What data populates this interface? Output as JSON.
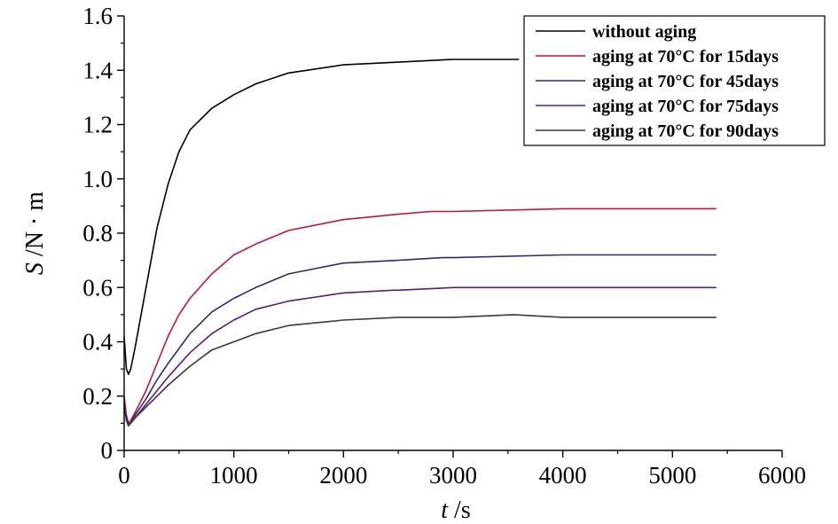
{
  "chart_data": {
    "type": "line",
    "xlabel": {
      "italic": "t",
      "rest": " /s"
    },
    "ylabel": {
      "italic": "S",
      "rest": " /N · m"
    },
    "xlim": [
      0,
      6000
    ],
    "ylim": [
      0,
      1.6
    ],
    "x_ticks": [
      0,
      1000,
      2000,
      3000,
      4000,
      5000,
      6000
    ],
    "y_ticks": [
      0,
      0.2,
      0.4,
      0.6,
      0.8,
      1.0,
      1.2,
      1.4,
      1.6
    ],
    "x_tick_labels": [
      "0",
      "1000",
      "2000",
      "3000",
      "4000",
      "5000",
      "6000"
    ],
    "y_tick_labels": [
      "0",
      "0.2",
      "0.4",
      "0.6",
      "0.8",
      "1.0",
      "1.2",
      "1.4",
      "1.6"
    ],
    "grid": false,
    "legend_position": "top-right",
    "series": [
      {
        "name": "without aging",
        "color": "#000000",
        "points": [
          [
            0,
            0.42
          ],
          [
            20,
            0.3
          ],
          [
            40,
            0.28
          ],
          [
            60,
            0.3
          ],
          [
            100,
            0.38
          ],
          [
            200,
            0.6
          ],
          [
            300,
            0.82
          ],
          [
            400,
            0.98
          ],
          [
            500,
            1.1
          ],
          [
            600,
            1.18
          ],
          [
            800,
            1.26
          ],
          [
            1000,
            1.31
          ],
          [
            1200,
            1.35
          ],
          [
            1500,
            1.39
          ],
          [
            2000,
            1.42
          ],
          [
            2500,
            1.43
          ],
          [
            3000,
            1.44
          ],
          [
            3600,
            1.44
          ]
        ]
      },
      {
        "name": "aging at 70°C for 15days",
        "color": "#c0143c",
        "points": [
          [
            0,
            0.2
          ],
          [
            20,
            0.13
          ],
          [
            40,
            0.1
          ],
          [
            60,
            0.11
          ],
          [
            100,
            0.14
          ],
          [
            200,
            0.22
          ],
          [
            300,
            0.32
          ],
          [
            400,
            0.42
          ],
          [
            500,
            0.5
          ],
          [
            600,
            0.56
          ],
          [
            800,
            0.65
          ],
          [
            1000,
            0.72
          ],
          [
            1200,
            0.76
          ],
          [
            1500,
            0.81
          ],
          [
            2000,
            0.85
          ],
          [
            2500,
            0.87
          ],
          [
            2800,
            0.88
          ],
          [
            3000,
            0.88
          ],
          [
            4000,
            0.89
          ],
          [
            5000,
            0.89
          ],
          [
            5400,
            0.89
          ]
        ]
      },
      {
        "name": "aging at 70°C for 45days",
        "color": "#2c2a7a",
        "points": [
          [
            0,
            0.18
          ],
          [
            20,
            0.12
          ],
          [
            40,
            0.1
          ],
          [
            60,
            0.1
          ],
          [
            100,
            0.13
          ],
          [
            200,
            0.19
          ],
          [
            300,
            0.26
          ],
          [
            400,
            0.32
          ],
          [
            600,
            0.43
          ],
          [
            800,
            0.51
          ],
          [
            1000,
            0.56
          ],
          [
            1200,
            0.6
          ],
          [
            1500,
            0.65
          ],
          [
            2000,
            0.69
          ],
          [
            2500,
            0.7
          ],
          [
            2900,
            0.71
          ],
          [
            3000,
            0.71
          ],
          [
            4000,
            0.72
          ],
          [
            5000,
            0.72
          ],
          [
            5400,
            0.72
          ]
        ]
      },
      {
        "name": "aging at 70°C for 75days",
        "color": "#5a1a80",
        "points": [
          [
            0,
            0.17
          ],
          [
            20,
            0.11
          ],
          [
            40,
            0.1
          ],
          [
            60,
            0.1
          ],
          [
            100,
            0.12
          ],
          [
            200,
            0.17
          ],
          [
            300,
            0.22
          ],
          [
            400,
            0.27
          ],
          [
            600,
            0.36
          ],
          [
            800,
            0.43
          ],
          [
            1000,
            0.48
          ],
          [
            1200,
            0.52
          ],
          [
            1500,
            0.55
          ],
          [
            2000,
            0.58
          ],
          [
            2450,
            0.59
          ],
          [
            2500,
            0.59
          ],
          [
            3000,
            0.6
          ],
          [
            4000,
            0.6
          ],
          [
            5000,
            0.6
          ],
          [
            5400,
            0.6
          ]
        ]
      },
      {
        "name": "aging at 70°C for 90days",
        "color": "#3a3a3a",
        "points": [
          [
            0,
            0.16
          ],
          [
            20,
            0.11
          ],
          [
            40,
            0.09
          ],
          [
            60,
            0.1
          ],
          [
            100,
            0.12
          ],
          [
            200,
            0.16
          ],
          [
            300,
            0.2
          ],
          [
            400,
            0.24
          ],
          [
            600,
            0.31
          ],
          [
            800,
            0.37
          ],
          [
            1000,
            0.4
          ],
          [
            1200,
            0.43
          ],
          [
            1500,
            0.46
          ],
          [
            2000,
            0.48
          ],
          [
            2500,
            0.49
          ],
          [
            3000,
            0.49
          ],
          [
            3550,
            0.5
          ],
          [
            4000,
            0.49
          ],
          [
            5000,
            0.49
          ],
          [
            5400,
            0.49
          ]
        ]
      }
    ]
  }
}
